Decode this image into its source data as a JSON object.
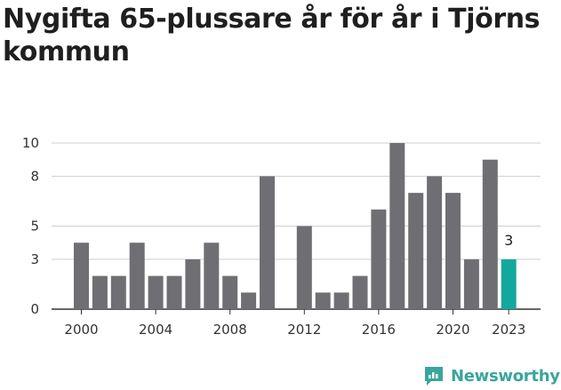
{
  "title": "Nygifta 65-plussare år för år i Tjörns kommun",
  "brand": {
    "name": "Newsworthy",
    "icon": "newsworthy-logo-icon"
  },
  "colors": {
    "bar": "#6f6f73",
    "highlight": "#13a89e",
    "grid": "#cfcfcf",
    "axis": "#333333"
  },
  "chart_data": {
    "type": "bar",
    "title": "Nygifta 65-plussare år för år i Tjörns kommun",
    "xlabel": "",
    "ylabel": "",
    "categories": [
      "2000",
      "2001",
      "2002",
      "2003",
      "2004",
      "2005",
      "2006",
      "2007",
      "2008",
      "2009",
      "2010",
      "2011",
      "2012",
      "2013",
      "2014",
      "2015",
      "2016",
      "2017",
      "2018",
      "2019",
      "2020",
      "2021",
      "2022",
      "2023"
    ],
    "values": [
      4,
      2,
      2,
      4,
      2,
      2,
      3,
      4,
      2,
      1,
      8,
      0,
      5,
      1,
      1,
      2,
      6,
      10,
      7,
      8,
      7,
      3,
      9,
      3
    ],
    "highlight_index": 23,
    "highlight_label": "3",
    "ylim": [
      0,
      10
    ],
    "y_ticks": [
      0,
      3,
      5,
      8,
      10
    ],
    "x_tick_labels": [
      "2000",
      "2004",
      "2008",
      "2012",
      "2016",
      "2020",
      "2023"
    ],
    "grid": true,
    "legend": "none"
  }
}
